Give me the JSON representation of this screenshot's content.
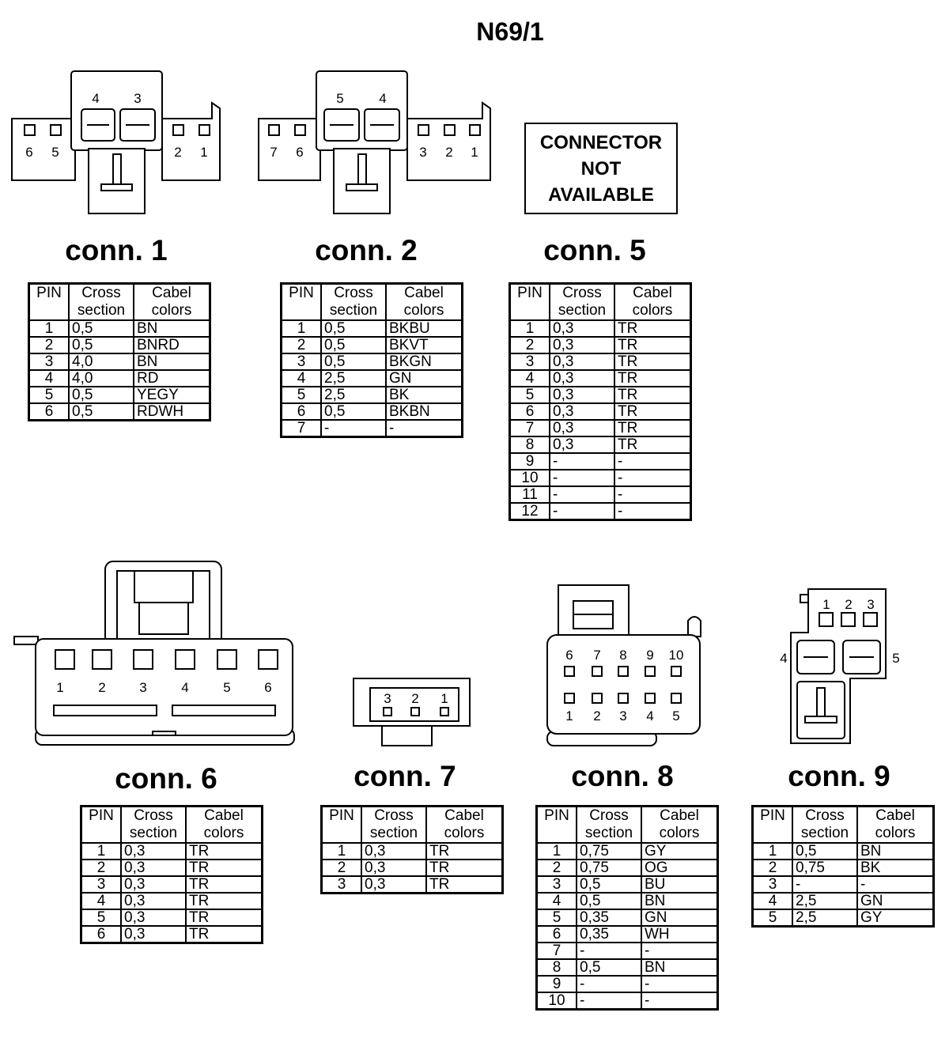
{
  "title": "N69/1",
  "headers": {
    "pin": "PIN",
    "cross": "Cross section",
    "colors": "Cabel colors"
  },
  "connector_5_note": [
    "CONNECTOR",
    "NOT",
    "AVAILABLE"
  ],
  "connectors": [
    {
      "id": "c1",
      "label": "conn. 1",
      "pin_labels": [
        "4",
        "3",
        "6",
        "5",
        "2",
        "1"
      ],
      "rows": [
        [
          "1",
          "0,5",
          "BN"
        ],
        [
          "2",
          "0,5",
          "BNRD"
        ],
        [
          "3",
          "4,0",
          "BN"
        ],
        [
          "4",
          "4,0",
          "RD"
        ],
        [
          "5",
          "0,5",
          "YEGY"
        ],
        [
          "6",
          "0,5",
          "RDWH"
        ]
      ]
    },
    {
      "id": "c2",
      "label": "conn. 2",
      "pin_labels": [
        "5",
        "4",
        "7",
        "6",
        "3",
        "2",
        "1"
      ],
      "rows": [
        [
          "1",
          "0,5",
          "BKBU"
        ],
        [
          "2",
          "0,5",
          "BKVT"
        ],
        [
          "3",
          "0,5",
          "BKGN"
        ],
        [
          "4",
          "2,5",
          "GN"
        ],
        [
          "5",
          "2,5",
          "BK"
        ],
        [
          "6",
          "0,5",
          "BKBN"
        ],
        [
          "7",
          "-",
          "-"
        ]
      ]
    },
    {
      "id": "c5",
      "label": "conn. 5",
      "pin_labels": [],
      "rows": [
        [
          "1",
          "0,3",
          "TR"
        ],
        [
          "2",
          "0,3",
          "TR"
        ],
        [
          "3",
          "0,3",
          "TR"
        ],
        [
          "4",
          "0,3",
          "TR"
        ],
        [
          "5",
          "0,3",
          "TR"
        ],
        [
          "6",
          "0,3",
          "TR"
        ],
        [
          "7",
          "0,3",
          "TR"
        ],
        [
          "8",
          "0,3",
          "TR"
        ],
        [
          "9",
          "-",
          "-"
        ],
        [
          "10",
          "-",
          "-"
        ],
        [
          "11",
          "-",
          "-"
        ],
        [
          "12",
          "-",
          "-"
        ]
      ]
    },
    {
      "id": "c6",
      "label": "conn. 6",
      "pin_labels": [
        "1",
        "2",
        "3",
        "4",
        "5",
        "6"
      ],
      "rows": [
        [
          "1",
          "0,3",
          "TR"
        ],
        [
          "2",
          "0,3",
          "TR"
        ],
        [
          "3",
          "0,3",
          "TR"
        ],
        [
          "4",
          "0,3",
          "TR"
        ],
        [
          "5",
          "0,3",
          "TR"
        ],
        [
          "6",
          "0,3",
          "TR"
        ]
      ]
    },
    {
      "id": "c7",
      "label": "conn. 7",
      "pin_labels": [
        "3",
        "2",
        "1"
      ],
      "rows": [
        [
          "1",
          "0,3",
          "TR"
        ],
        [
          "2",
          "0,3",
          "TR"
        ],
        [
          "3",
          "0,3",
          "TR"
        ]
      ]
    },
    {
      "id": "c8",
      "label": "conn. 8",
      "pin_labels": [
        "6",
        "7",
        "8",
        "9",
        "10",
        "1",
        "2",
        "3",
        "4",
        "5"
      ],
      "rows": [
        [
          "1",
          "0,75",
          "GY"
        ],
        [
          "2",
          "0,75",
          "OG"
        ],
        [
          "3",
          "0,5",
          "BU"
        ],
        [
          "4",
          "0,5",
          "BN"
        ],
        [
          "5",
          "0,35",
          "GN"
        ],
        [
          "6",
          "0,35",
          "WH"
        ],
        [
          "7",
          "-",
          "-"
        ],
        [
          "8",
          "0,5",
          "BN"
        ],
        [
          "9",
          "-",
          "-"
        ],
        [
          "10",
          "-",
          "-"
        ]
      ]
    },
    {
      "id": "c9",
      "label": "conn. 9",
      "pin_labels": [
        "1",
        "2",
        "3",
        "4",
        "5"
      ],
      "rows": [
        [
          "1",
          "0,5",
          "BN"
        ],
        [
          "2",
          "0,75",
          "BK"
        ],
        [
          "3",
          "-",
          "-"
        ],
        [
          "4",
          "2,5",
          "GN"
        ],
        [
          "5",
          "2,5",
          "GY"
        ]
      ]
    }
  ]
}
